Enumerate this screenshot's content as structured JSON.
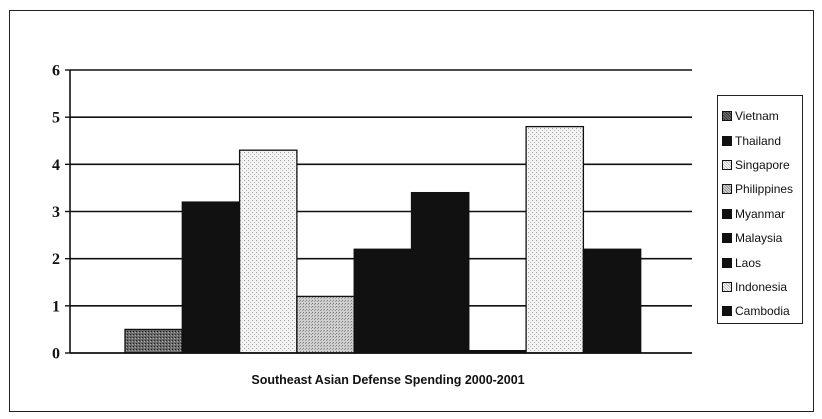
{
  "chart_data": {
    "type": "bar",
    "title": "",
    "xlabel": "Southeast Asian Defense Spending 2000-2001",
    "ylabel": "",
    "ylim": [
      0,
      6
    ],
    "yticks": [
      "0",
      "1",
      "2",
      "3",
      "4",
      "5",
      "6"
    ],
    "grid": true,
    "legend_position": "right",
    "series": [
      {
        "name": "Vietnam",
        "value": 0.5,
        "color": "#555555"
      },
      {
        "name": "Thailand",
        "value": 3.2,
        "color": "#111111"
      },
      {
        "name": "Singapore",
        "value": 4.3,
        "color": "#f2f2f2"
      },
      {
        "name": "Philippines",
        "value": 1.2,
        "color": "#bdbdbd"
      },
      {
        "name": "Myanmar",
        "value": 2.2,
        "color": "#111111"
      },
      {
        "name": "Malaysia",
        "value": 3.4,
        "color": "#111111"
      },
      {
        "name": "Laos",
        "value": 0.05,
        "color": "#111111"
      },
      {
        "name": "Indonesia",
        "value": 4.8,
        "color": "#f2f2f2"
      },
      {
        "name": "Cambodia",
        "value": 2.2,
        "color": "#111111"
      }
    ]
  }
}
